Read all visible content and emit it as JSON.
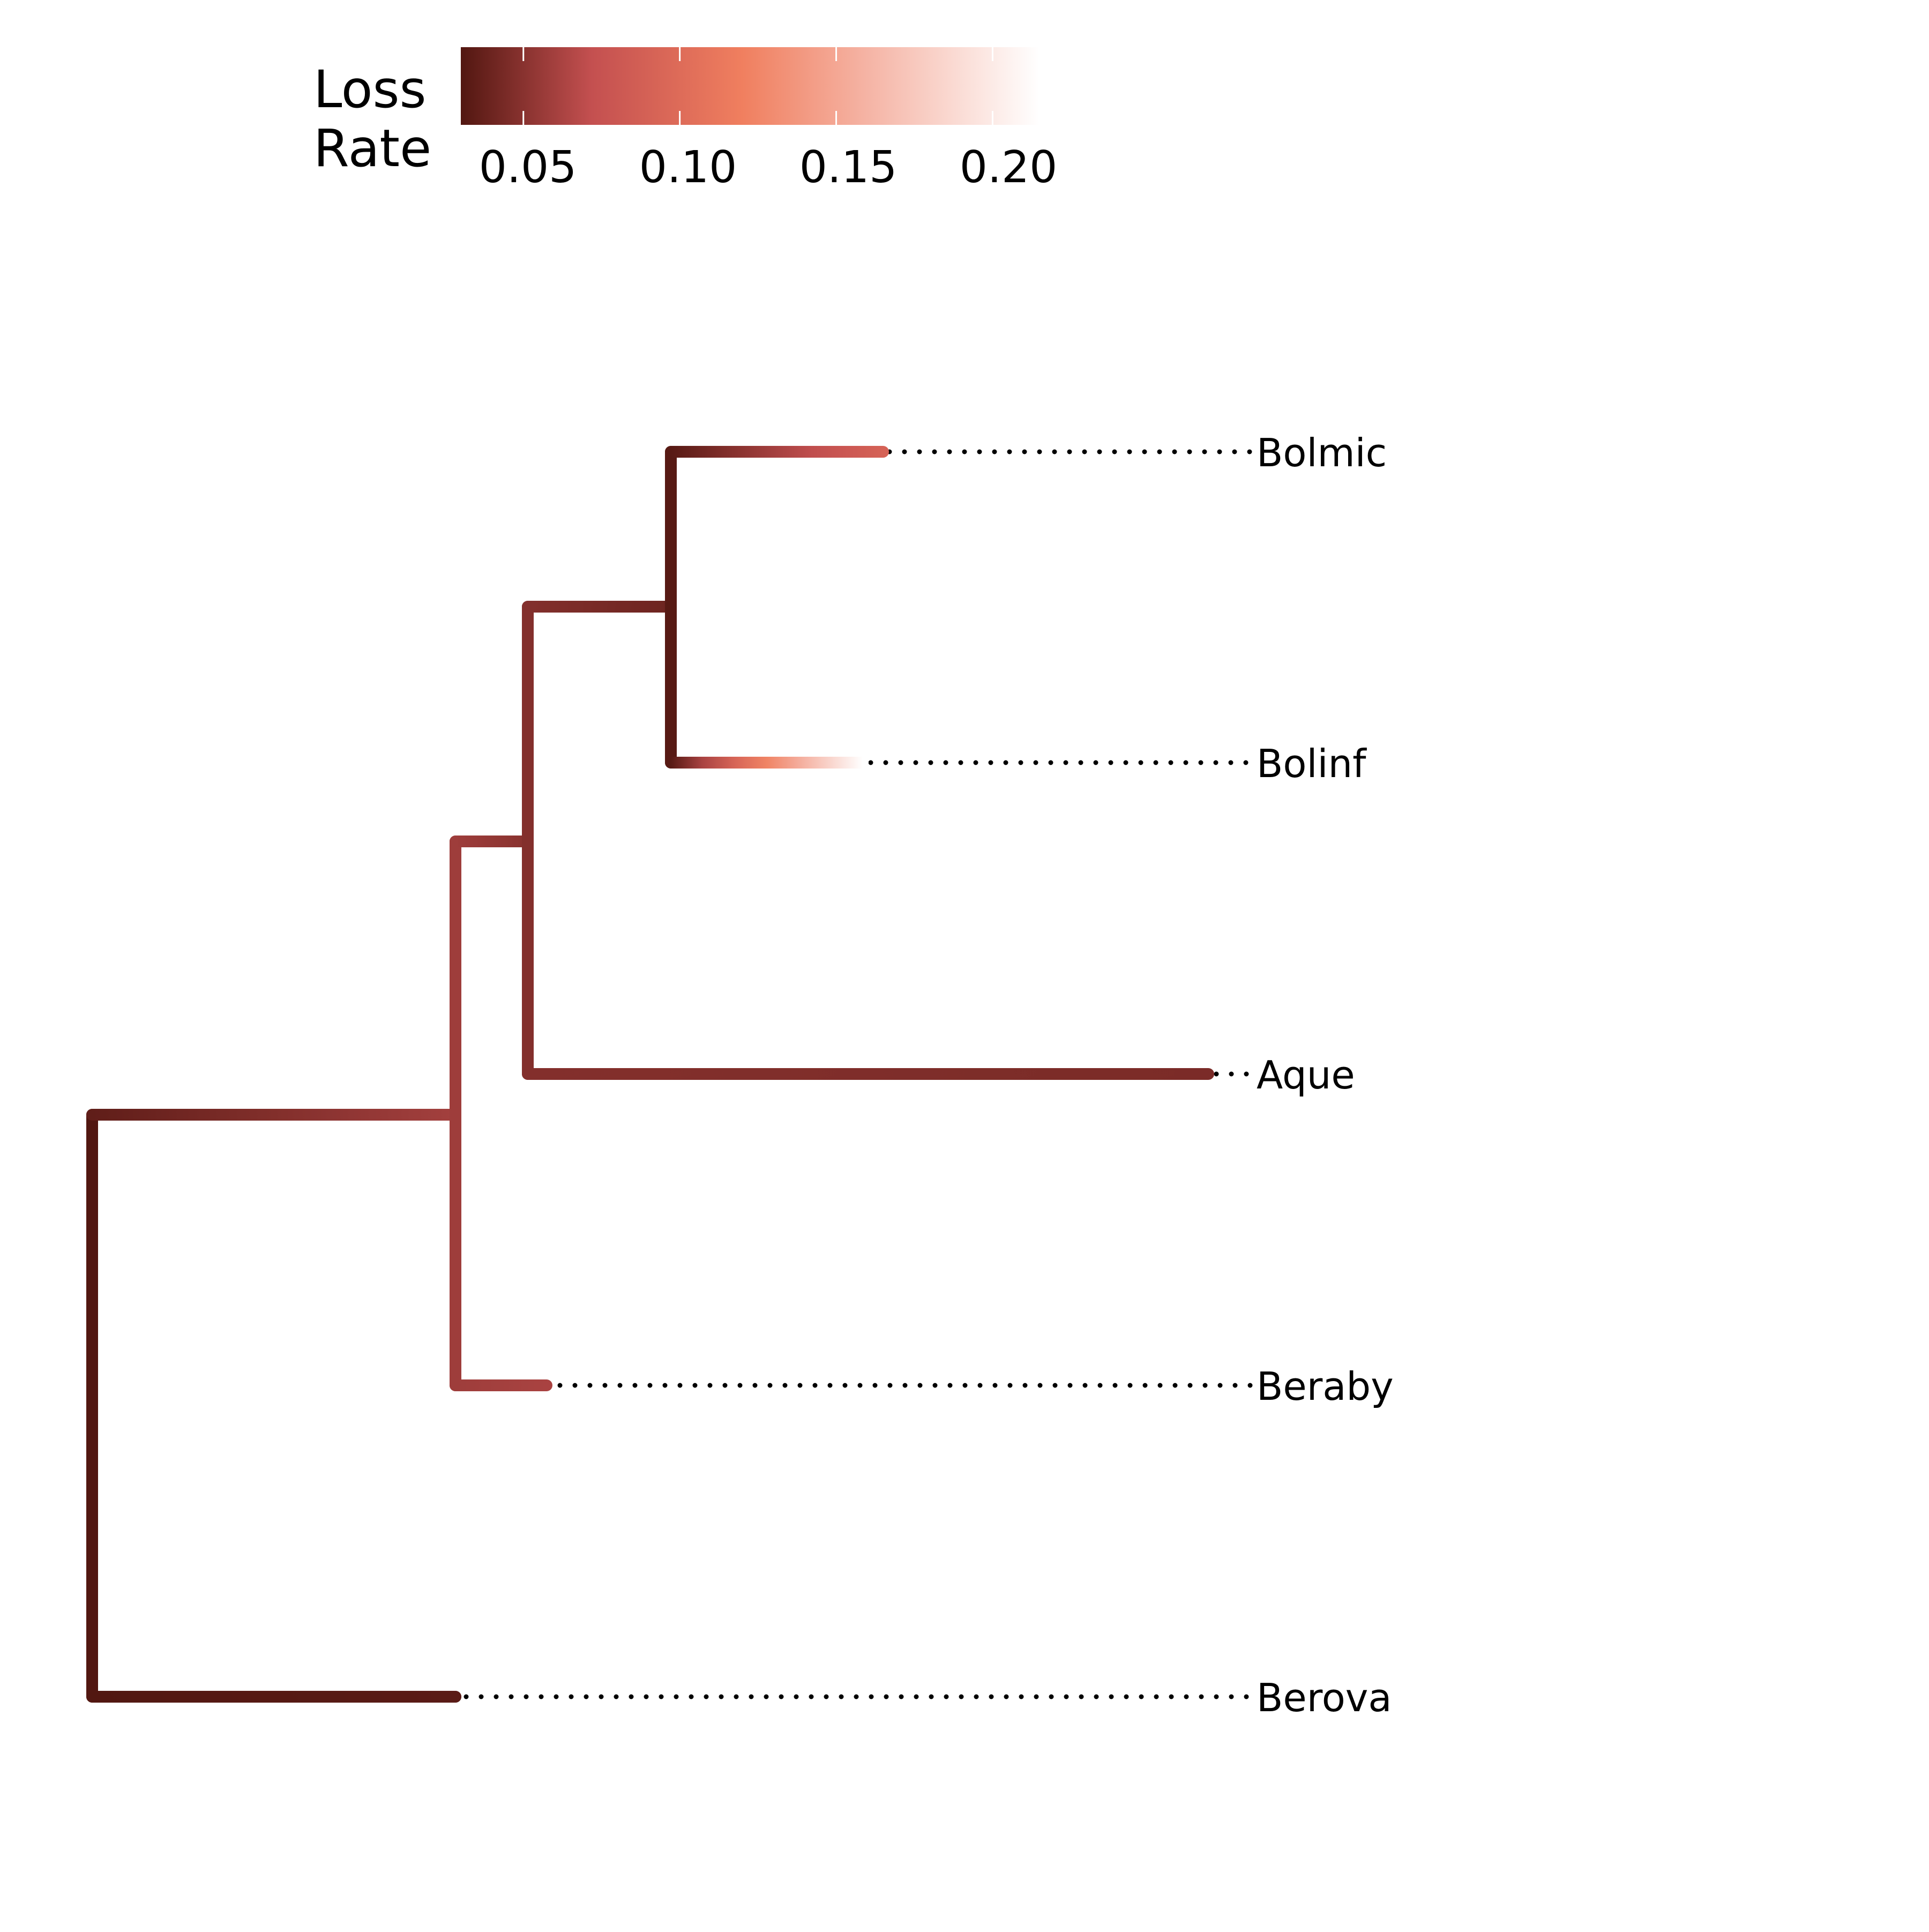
{
  "legend": {
    "title_line1": "Loss",
    "title_line2": "Rate",
    "ticks": [
      "0.05",
      "0.10",
      "0.15",
      "0.20"
    ],
    "tick_values": [
      0.05,
      0.1,
      0.15,
      0.2
    ],
    "range": [
      0.03,
      0.215
    ],
    "colormap": [
      {
        "value": 0.03,
        "color": "#521711"
      },
      {
        "value": 0.072,
        "color": "#c45050"
      },
      {
        "value": 0.12,
        "color": "#f07f5f"
      },
      {
        "value": 0.16,
        "color": "#f5b4a5"
      },
      {
        "value": 0.215,
        "color": "#ffffff"
      }
    ]
  },
  "tree": {
    "tips": [
      "Bolmic",
      "Bolinf",
      "Aque",
      "Beraby",
      "Berova"
    ],
    "branch_color_values": {
      "root_to_beraby_clade": [
        0.035,
        0.06
      ],
      "root_to_berova": [
        0.03,
        0.033
      ],
      "beraby_clade_to_aque_clade": [
        0.058,
        0.05
      ],
      "beraby_clade_to_beraby": [
        0.058,
        0.062
      ],
      "aque_clade_to_bol_clade": [
        0.048,
        0.04
      ],
      "aque_clade_to_aque": [
        0.048,
        0.045
      ],
      "bol_clade_to_bolmic": [
        0.032,
        0.09
      ],
      "bol_clade_to_bolinf": [
        0.032,
        0.215
      ]
    }
  }
}
